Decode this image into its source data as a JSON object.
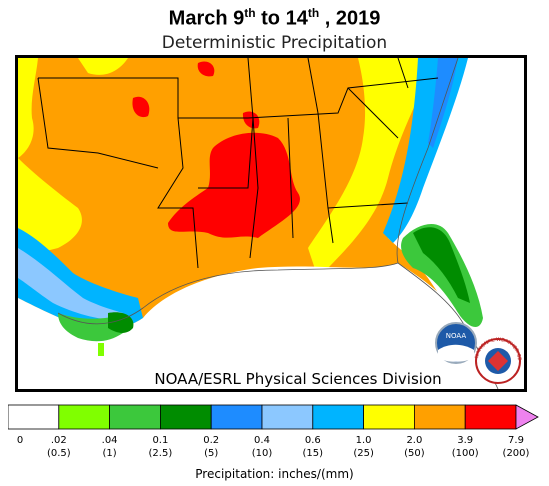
{
  "title": {
    "prefix": "March 9",
    "sup1": "th",
    "middle": " to 14",
    "sup2": "th",
    "suffix": " , 2019"
  },
  "subtitle": "Deterministic Precipitation",
  "credit": "NOAA/ESRL Physical Sciences Division",
  "logos": {
    "noaa": "NOAA",
    "nws": "NATIONAL WEATHER SERVICE"
  },
  "colorbar": {
    "title": "Precipitation: inches/(mm)",
    "bins": [
      {
        "color": "#ffffff"
      },
      {
        "color": "#80ff00"
      },
      {
        "color": "#3cc83c"
      },
      {
        "color": "#008c00"
      },
      {
        "color": "#1e8cff"
      },
      {
        "color": "#8cc8ff"
      },
      {
        "color": "#00b4ff"
      },
      {
        "color": "#ffff00"
      },
      {
        "color": "#ffa000"
      },
      {
        "color": "#ff0000"
      },
      {
        "color": "#ee82ee"
      }
    ],
    "ticks": [
      {
        "inch": "0",
        "mm": ""
      },
      {
        "inch": ".02",
        "mm": "(0.5)"
      },
      {
        "inch": ".04",
        "mm": "(1)"
      },
      {
        "inch": "0.1",
        "mm": "(2.5)"
      },
      {
        "inch": "0.2",
        "mm": "(5)"
      },
      {
        "inch": "0.4",
        "mm": "(10)"
      },
      {
        "inch": "0.6",
        "mm": "(15)"
      },
      {
        "inch": "1.0",
        "mm": "(25)"
      },
      {
        "inch": "2.0",
        "mm": "(50)"
      },
      {
        "inch": "3.9",
        "mm": "(100)"
      },
      {
        "inch": "7.9",
        "mm": "(200)"
      }
    ]
  }
}
